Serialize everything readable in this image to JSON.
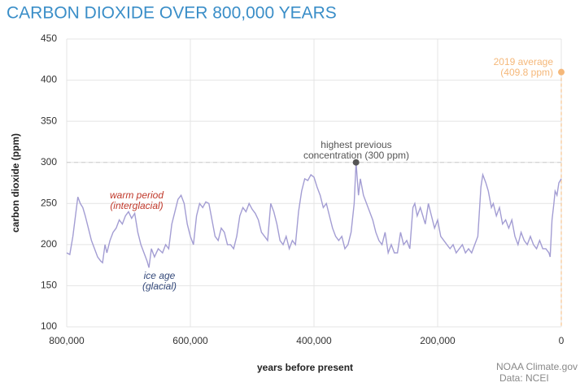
{
  "chart_data": {
    "type": "line",
    "title": "CARBON DIOXIDE OVER 800,000 YEARS",
    "xlabel": "years before present",
    "ylabel": "carbon dioxide (ppm)",
    "xlim": [
      800000,
      0
    ],
    "ylim": [
      100,
      450
    ],
    "xticks": [
      {
        "value": 800000,
        "label": "800,000"
      },
      {
        "value": 600000,
        "label": "600,000"
      },
      {
        "value": 400000,
        "label": "400,000"
      },
      {
        "value": 200000,
        "label": "200,000"
      },
      0
    ],
    "yticks": [
      100,
      150,
      200,
      250,
      300,
      350,
      400,
      450
    ],
    "grid": true,
    "x": [
      800000,
      795000,
      790000,
      785000,
      782000,
      778000,
      774000,
      770000,
      765000,
      760000,
      755000,
      750000,
      745000,
      742000,
      738000,
      735000,
      730000,
      725000,
      720000,
      715000,
      710000,
      705000,
      700000,
      695000,
      690000,
      685000,
      680000,
      675000,
      670000,
      667000,
      663000,
      658000,
      652000,
      645000,
      640000,
      635000,
      630000,
      625000,
      620000,
      615000,
      610000,
      605000,
      600000,
      595000,
      590000,
      585000,
      580000,
      575000,
      570000,
      565000,
      560000,
      555000,
      550000,
      545000,
      540000,
      535000,
      530000,
      525000,
      520000,
      515000,
      510000,
      505000,
      500000,
      495000,
      490000,
      485000,
      480000,
      475000,
      470000,
      465000,
      460000,
      455000,
      450000,
      445000,
      440000,
      435000,
      430000,
      425000,
      420000,
      415000,
      410000,
      405000,
      400000,
      395000,
      390000,
      385000,
      380000,
      375000,
      370000,
      365000,
      360000,
      355000,
      350000,
      345000,
      340000,
      335000,
      332000,
      328000,
      325000,
      320000,
      315000,
      310000,
      305000,
      300000,
      295000,
      290000,
      285000,
      280000,
      275000,
      270000,
      265000,
      260000,
      255000,
      250000,
      245000,
      240000,
      237000,
      233000,
      228000,
      224000,
      220000,
      215000,
      210000,
      205000,
      200000,
      195000,
      190000,
      185000,
      180000,
      175000,
      170000,
      165000,
      160000,
      155000,
      150000,
      145000,
      140000,
      135000,
      130000,
      127000,
      122000,
      118000,
      113000,
      110000,
      105000,
      100000,
      95000,
      90000,
      85000,
      80000,
      75000,
      70000,
      65000,
      60000,
      55000,
      50000,
      45000,
      40000,
      35000,
      30000,
      25000,
      20000,
      18000,
      15000,
      12000,
      10000,
      7000,
      4000,
      0
    ],
    "series": [
      {
        "name": "carbon dioxide",
        "color": "#a39dd3",
        "values": [
          190,
          188,
          210,
          240,
          258,
          250,
          245,
          235,
          220,
          205,
          195,
          185,
          180,
          178,
          200,
          190,
          205,
          215,
          220,
          230,
          225,
          235,
          240,
          232,
          238,
          215,
          200,
          190,
          180,
          172,
          195,
          185,
          195,
          190,
          200,
          195,
          225,
          240,
          255,
          260,
          250,
          225,
          210,
          200,
          235,
          250,
          245,
          252,
          250,
          230,
          210,
          205,
          220,
          215,
          200,
          200,
          195,
          210,
          235,
          245,
          240,
          250,
          243,
          238,
          230,
          215,
          210,
          205,
          250,
          240,
          225,
          205,
          200,
          210,
          195,
          205,
          200,
          240,
          265,
          280,
          278,
          285,
          282,
          270,
          260,
          245,
          250,
          235,
          220,
          210,
          205,
          210,
          195,
          200,
          215,
          250,
          300,
          260,
          280,
          260,
          250,
          240,
          230,
          215,
          205,
          200,
          215,
          190,
          200,
          190,
          190,
          215,
          200,
          205,
          195,
          245,
          250,
          235,
          245,
          235,
          225,
          250,
          235,
          220,
          230,
          210,
          205,
          200,
          195,
          200,
          190,
          195,
          200,
          190,
          195,
          190,
          200,
          210,
          270,
          285,
          275,
          265,
          245,
          250,
          235,
          245,
          225,
          230,
          220,
          230,
          210,
          200,
          215,
          205,
          200,
          210,
          200,
          195,
          205,
          195,
          195,
          190,
          185,
          230,
          250,
          265,
          260,
          275,
          280
        ]
      }
    ],
    "highlights": [
      {
        "x": 332000,
        "y": 300,
        "color": "#555555"
      },
      {
        "x": 0,
        "y": 409.8,
        "color": "#f5b87a"
      }
    ],
    "annotations": [
      {
        "lines": [
          "warm period",
          "(interglacial)"
        ],
        "color": "#c0392b"
      },
      {
        "lines": [
          "ice age",
          "(glacial)"
        ],
        "color": "#34497a"
      },
      {
        "lines": [
          "highest previous",
          "concentration (300 ppm)"
        ],
        "color": "#555555"
      },
      {
        "lines": [
          "2019 average",
          "(409.8 ppm)"
        ],
        "color": "#f5b87a"
      }
    ],
    "source": [
      "NOAA Climate.gov",
      "Data: NCEI"
    ]
  }
}
